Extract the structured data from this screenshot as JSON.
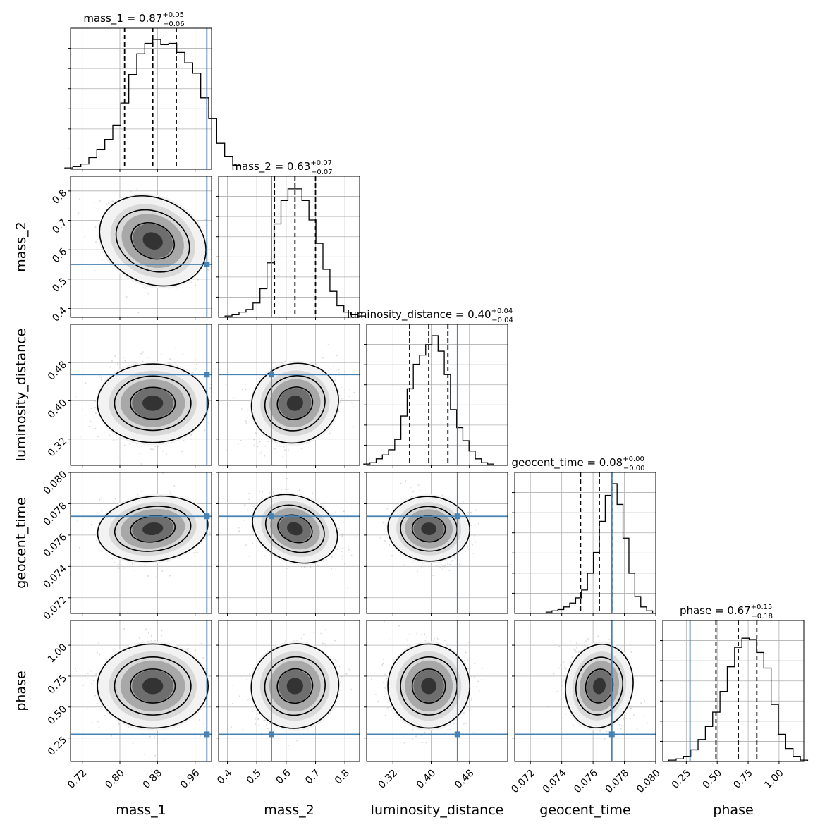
{
  "chart_data": {
    "type": "corner",
    "parameters": [
      {
        "name": "mass_1",
        "label": "mass_1",
        "title": "mass_1 = 0.87",
        "median": 0.87,
        "plus": "+0.05",
        "minus": "−0.06",
        "range": [
          0.695,
          0.995
        ],
        "ticks": [
          0.72,
          0.8,
          0.88,
          0.96
        ],
        "tick_labels": [
          "0.72",
          "0.80",
          "0.88",
          "0.96"
        ],
        "truth": 0.985,
        "quantiles": [
          0.81,
          0.87,
          0.92
        ],
        "hist_heights": [
          0.01,
          0.02,
          0.04,
          0.09,
          0.15,
          0.23,
          0.34,
          0.51,
          0.73,
          0.89,
          0.97,
          1.0,
          0.96,
          0.97,
          0.9,
          0.82,
          0.74,
          0.55,
          0.39,
          0.2,
          0.1,
          0.03
        ]
      },
      {
        "name": "mass_2",
        "label": "mass_2",
        "title": "mass_2 = 0.63",
        "median": 0.63,
        "plus": "+0.07",
        "minus": "−0.07",
        "range": [
          0.37,
          0.85
        ],
        "ticks": [
          0.4,
          0.5,
          0.6,
          0.7,
          0.8
        ],
        "tick_labels": [
          "0.4",
          "0.5",
          "0.6",
          "0.7",
          "0.8"
        ],
        "truth": 0.55,
        "quantiles": [
          0.56,
          0.63,
          0.7
        ],
        "hist_heights": [
          0.01,
          0.02,
          0.04,
          0.06,
          0.11,
          0.22,
          0.42,
          0.72,
          0.9,
          0.99,
          0.99,
          0.9,
          0.75,
          0.57,
          0.37,
          0.2,
          0.09,
          0.04,
          0.02,
          0.01
        ]
      },
      {
        "name": "luminosity_distance",
        "label": "luminosity_distance",
        "title": "luminosity_distance = 0.40",
        "median": 0.4,
        "plus": "+0.04",
        "minus": "−0.04",
        "range": [
          0.265,
          0.56
        ],
        "ticks": [
          0.32,
          0.4,
          0.48
        ],
        "tick_labels": [
          "0.32",
          "0.40",
          "0.48"
        ],
        "truth": 0.455,
        "quantiles": [
          0.355,
          0.395,
          0.435
        ],
        "hist_heights": [
          0.01,
          0.02,
          0.05,
          0.08,
          0.12,
          0.2,
          0.38,
          0.59,
          0.78,
          0.85,
          0.93,
          1.0,
          0.88,
          0.7,
          0.43,
          0.29,
          0.19,
          0.11,
          0.05,
          0.02,
          0.01
        ]
      },
      {
        "name": "geocent_time",
        "label": "geocent_time",
        "title": "geocent_time = 0.08",
        "median": 0.08,
        "plus": "+0.00",
        "minus": "−0.00",
        "range": [
          0.071,
          0.08
        ],
        "ticks": [
          0.072,
          0.074,
          0.076,
          0.078,
          0.08
        ],
        "tick_labels": [
          "0.072",
          "0.074",
          "0.076",
          "0.078",
          "0.080"
        ],
        "truth": 0.0772,
        "quantiles": [
          0.0752,
          0.0764,
          0.0772
        ],
        "hist_heights": [
          0.01,
          0.02,
          0.03,
          0.05,
          0.08,
          0.12,
          0.18,
          0.31,
          0.47,
          0.71,
          0.91,
          1.0,
          0.84,
          0.58,
          0.31,
          0.13,
          0.05,
          0.02
        ]
      },
      {
        "name": "phase",
        "label": "phase",
        "title": "phase = 0.67",
        "median": 0.67,
        "plus": "+0.15",
        "minus": "−0.18",
        "range": [
          0.06,
          1.2
        ],
        "ticks": [
          0.25,
          0.5,
          0.75,
          1.0
        ],
        "tick_labels": [
          "0.25",
          "0.50",
          "0.75",
          "1.00"
        ],
        "truth": 0.28,
        "quantiles": [
          0.49,
          0.67,
          0.82
        ],
        "hist_heights": [
          0.01,
          0.02,
          0.04,
          0.09,
          0.17,
          0.27,
          0.38,
          0.54,
          0.73,
          0.88,
          0.95,
          0.94,
          0.84,
          0.72,
          0.44,
          0.21,
          0.1,
          0.04,
          0.01
        ]
      }
    ],
    "contour_levels": 3,
    "grid": true,
    "truth_color": "#4682b4",
    "density_color": "#000000",
    "scatter_color": "#aaaaaa"
  }
}
